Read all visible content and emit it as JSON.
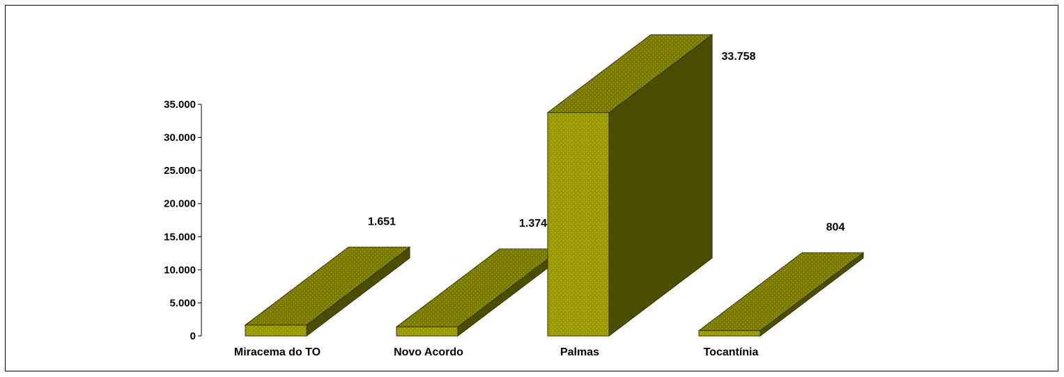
{
  "chart_data": {
    "type": "bar",
    "title": "",
    "xlabel": "",
    "ylabel": "",
    "categories": [
      "Miracema do TO",
      "Novo Acordo",
      "Palmas",
      "Tocantínia"
    ],
    "values": [
      1651,
      1374,
      33758,
      804
    ],
    "value_labels": [
      "1.651",
      "1.374",
      "33.758",
      "804"
    ],
    "yticks": [
      0,
      5000,
      10000,
      15000,
      20000,
      25000,
      30000,
      35000
    ],
    "ytick_labels": [
      "0",
      "5.000",
      "10.000",
      "15.000",
      "20.000",
      "25.000",
      "30.000",
      "35.000"
    ],
    "ylim": [
      0,
      35000
    ],
    "grid": false,
    "legend": "none",
    "style": "3d-bars",
    "colors": {
      "front": "#999900",
      "top": "#7a7a00",
      "side": "#4d4d00",
      "edge": "#333300"
    }
  }
}
